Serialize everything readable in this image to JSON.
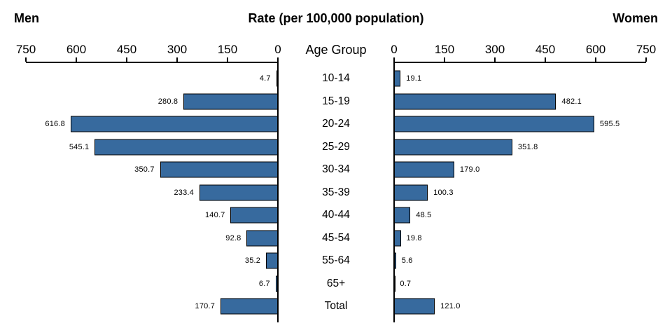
{
  "header": {
    "left": "Men",
    "title": "Rate (per 100,000 population)",
    "right": "Women"
  },
  "axis": {
    "center_label": "Age Group",
    "max": 750,
    "men_ticks": [
      750,
      600,
      450,
      300,
      150,
      0
    ],
    "women_ticks": [
      0,
      150,
      300,
      450,
      600,
      750
    ]
  },
  "colors": {
    "bar_fill": "#376a9e",
    "bar_border": "#000000",
    "axis": "#000000"
  },
  "chart_data": {
    "type": "bar",
    "orientation": "horizontal-pyramid",
    "title": "Rate (per 100,000 population)",
    "xlabel": "Rate (per 100,000 population)",
    "ylabel": "Age Group",
    "axis_range": [
      0,
      750
    ],
    "tick_interval": 150,
    "grid": false,
    "legend_position": "top-outside",
    "value_label_decimals": 1,
    "categories": [
      "10-14",
      "15-19",
      "20-24",
      "25-29",
      "30-34",
      "35-39",
      "40-44",
      "45-54",
      "55-64",
      "65+",
      "Total"
    ],
    "series": [
      {
        "name": "Men",
        "values": [
          4.7,
          280.8,
          616.8,
          545.1,
          350.7,
          233.4,
          140.7,
          92.8,
          35.2,
          6.7,
          170.7
        ]
      },
      {
        "name": "Women",
        "values": [
          19.1,
          482.1,
          595.5,
          351.8,
          179.0,
          100.3,
          48.5,
          19.8,
          5.6,
          0.7,
          121.0
        ]
      }
    ]
  }
}
